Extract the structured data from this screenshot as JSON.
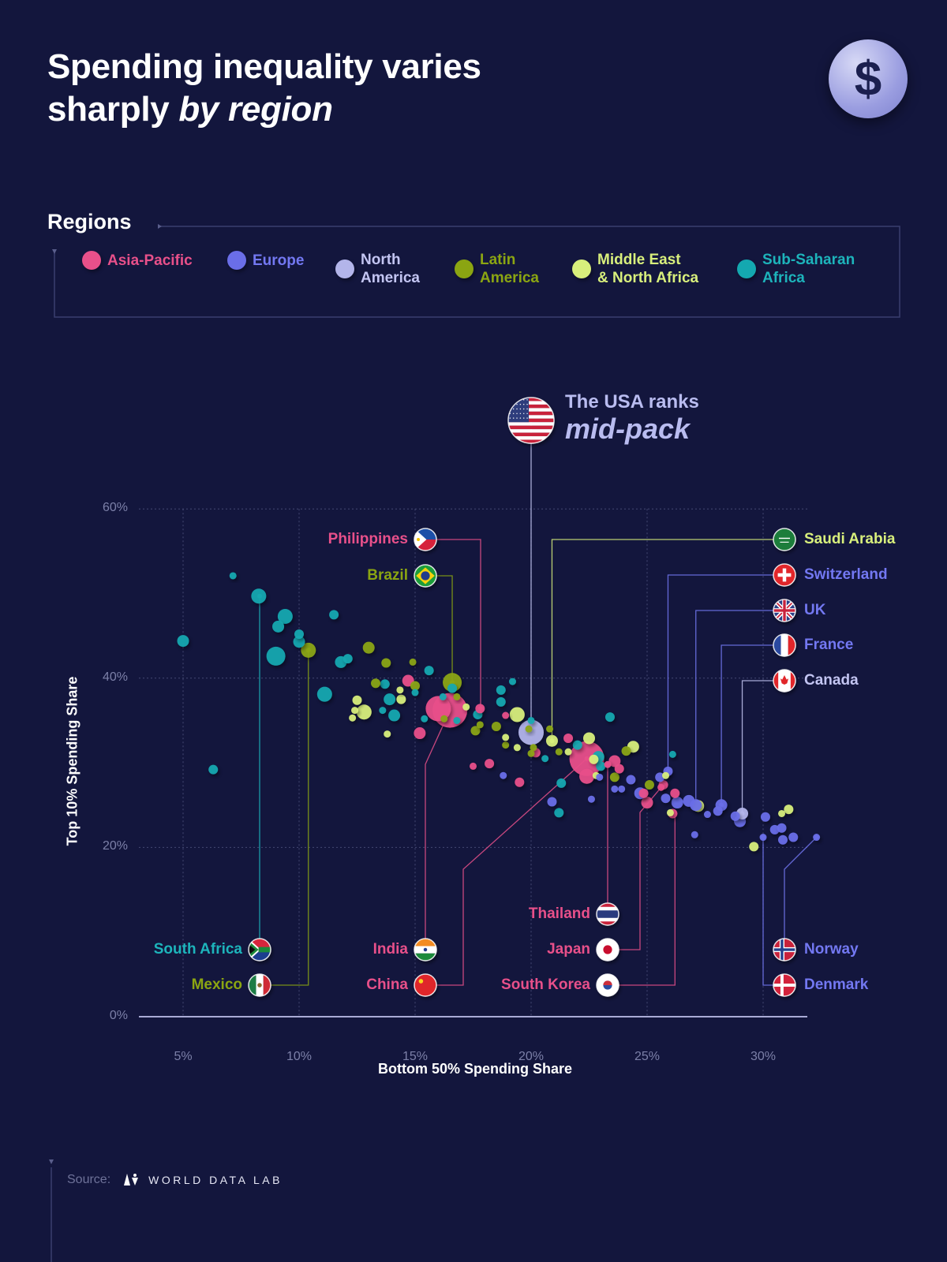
{
  "title": {
    "line1": "Spending inequality varies",
    "line2_plain": "sharply ",
    "line2_italic": "by region"
  },
  "header_icon": {
    "name": "dollar-icon",
    "glyph": "$"
  },
  "legend": {
    "heading": "Regions",
    "items": [
      {
        "key": "AP",
        "label": "Asia-Pacific",
        "color": "#e8508a"
      },
      {
        "key": "EU",
        "label": "Europe",
        "color": "#6a6ee8"
      },
      {
        "key": "NA",
        "label": "North\nAmerica",
        "color": "#b3b5ea"
      },
      {
        "key": "LA",
        "label": "Latin\nAmerica",
        "color": "#8ba512"
      },
      {
        "key": "ME",
        "label": "Middle East\n& North Africa",
        "color": "#d8ef7c"
      },
      {
        "key": "SS",
        "label": "Sub-Saharan\nAfrica",
        "color": "#14a8b0"
      }
    ]
  },
  "callout": {
    "line1": "The USA ranks",
    "line2": "mid-pack"
  },
  "chart_data": {
    "type": "scatter",
    "xlabel": "Bottom 50% Spending Share",
    "ylabel": "Top 10% Spending Share",
    "xlim": [
      3,
      32.5
    ],
    "ylim": [
      0,
      60
    ],
    "x_ticks": [
      "5%",
      "10%",
      "15%",
      "20%",
      "25%",
      "30%"
    ],
    "x_tick_values": [
      5,
      10,
      15,
      20,
      25,
      30
    ],
    "y_ticks": [
      "0%",
      "20%",
      "40%",
      "60%"
    ],
    "y_tick_values": [
      0,
      20,
      40,
      60
    ],
    "grid": true,
    "legend_placement": "top",
    "points": [
      {
        "x": 7.15,
        "y": 52.1,
        "region": "SS",
        "size": 1
      },
      {
        "x": 8.26,
        "y": 49.7,
        "region": "SS",
        "size": 4
      },
      {
        "x": 5.0,
        "y": 44.4,
        "region": "SS",
        "size": 3
      },
      {
        "x": 6.3,
        "y": 29.2,
        "region": "SS",
        "size": 2
      },
      {
        "x": 9.4,
        "y": 47.3,
        "region": "SS",
        "size": 4
      },
      {
        "x": 9.1,
        "y": 46.1,
        "region": "SS",
        "size": 3
      },
      {
        "x": 9.0,
        "y": 42.6,
        "region": "SS",
        "size": 5
      },
      {
        "x": 10.0,
        "y": 45.2,
        "region": "SS",
        "size": 2
      },
      {
        "x": 10.0,
        "y": 44.3,
        "region": "SS",
        "size": 3
      },
      {
        "x": 11.5,
        "y": 47.5,
        "region": "SS",
        "size": 2
      },
      {
        "x": 11.1,
        "y": 38.1,
        "region": "SS",
        "size": 4
      },
      {
        "x": 11.8,
        "y": 41.9,
        "region": "SS",
        "size": 3
      },
      {
        "x": 12.1,
        "y": 42.3,
        "region": "SS",
        "size": 2
      },
      {
        "x": 13.7,
        "y": 39.3,
        "region": "SS",
        "size": 2
      },
      {
        "x": 13.9,
        "y": 37.5,
        "region": "SS",
        "size": 3
      },
      {
        "x": 14.1,
        "y": 35.6,
        "region": "SS",
        "size": 3
      },
      {
        "x": 13.6,
        "y": 36.2,
        "region": "SS",
        "size": 1
      },
      {
        "x": 15.6,
        "y": 40.9,
        "region": "SS",
        "size": 2
      },
      {
        "x": 15.4,
        "y": 35.2,
        "region": "SS",
        "size": 1
      },
      {
        "x": 15.0,
        "y": 38.3,
        "region": "SS",
        "size": 1
      },
      {
        "x": 16.2,
        "y": 37.8,
        "region": "SS",
        "size": 1
      },
      {
        "x": 16.6,
        "y": 38.8,
        "region": "SS",
        "size": 2
      },
      {
        "x": 16.8,
        "y": 35.0,
        "region": "SS",
        "size": 1
      },
      {
        "x": 17.7,
        "y": 35.7,
        "region": "SS",
        "size": 2
      },
      {
        "x": 18.7,
        "y": 38.6,
        "region": "SS",
        "size": 2
      },
      {
        "x": 18.7,
        "y": 37.2,
        "region": "SS",
        "size": 2
      },
      {
        "x": 19.2,
        "y": 39.6,
        "region": "SS",
        "size": 1
      },
      {
        "x": 20.0,
        "y": 35.0,
        "region": "SS",
        "size": 1
      },
      {
        "x": 20.6,
        "y": 30.5,
        "region": "SS",
        "size": 1
      },
      {
        "x": 21.3,
        "y": 27.6,
        "region": "SS",
        "size": 2
      },
      {
        "x": 21.2,
        "y": 24.1,
        "region": "SS",
        "size": 2
      },
      {
        "x": 23.4,
        "y": 35.4,
        "region": "SS",
        "size": 2
      },
      {
        "x": 22.9,
        "y": 30.7,
        "region": "SS",
        "size": 3
      },
      {
        "x": 23.0,
        "y": 29.6,
        "region": "SS",
        "size": 2
      },
      {
        "x": 26.1,
        "y": 31.0,
        "region": "SS",
        "size": 1
      },
      {
        "x": 22.0,
        "y": 32.1,
        "region": "SS",
        "size": 2
      },
      {
        "x": 10.4,
        "y": 43.3,
        "region": "LA",
        "size": 4
      },
      {
        "x": 13.0,
        "y": 43.6,
        "region": "LA",
        "size": 3
      },
      {
        "x": 13.75,
        "y": 41.8,
        "region": "LA",
        "size": 2
      },
      {
        "x": 13.3,
        "y": 39.4,
        "region": "LA",
        "size": 2
      },
      {
        "x": 14.9,
        "y": 41.9,
        "region": "LA",
        "size": 1
      },
      {
        "x": 15.0,
        "y": 39.1,
        "region": "LA",
        "size": 2
      },
      {
        "x": 16.6,
        "y": 39.5,
        "region": "LA",
        "size": 5
      },
      {
        "x": 16.8,
        "y": 37.8,
        "region": "LA",
        "size": 1
      },
      {
        "x": 17.6,
        "y": 33.8,
        "region": "LA",
        "size": 2
      },
      {
        "x": 17.8,
        "y": 34.5,
        "region": "LA",
        "size": 1
      },
      {
        "x": 18.5,
        "y": 34.3,
        "region": "LA",
        "size": 2
      },
      {
        "x": 18.9,
        "y": 32.1,
        "region": "LA",
        "size": 1
      },
      {
        "x": 19.9,
        "y": 34.0,
        "region": "LA",
        "size": 1
      },
      {
        "x": 20.1,
        "y": 31.8,
        "region": "LA",
        "size": 1
      },
      {
        "x": 20.8,
        "y": 34.0,
        "region": "LA",
        "size": 1
      },
      {
        "x": 16.25,
        "y": 35.2,
        "region": "LA",
        "size": 1
      },
      {
        "x": 23.6,
        "y": 28.3,
        "region": "LA",
        "size": 2
      },
      {
        "x": 24.1,
        "y": 31.4,
        "region": "LA",
        "size": 2
      },
      {
        "x": 25.1,
        "y": 27.4,
        "region": "LA",
        "size": 2
      },
      {
        "x": 20.0,
        "y": 31.1,
        "region": "LA",
        "size": 1
      },
      {
        "x": 21.2,
        "y": 31.3,
        "region": "LA",
        "size": 1
      },
      {
        "x": 12.5,
        "y": 37.4,
        "region": "ME",
        "size": 2
      },
      {
        "x": 12.4,
        "y": 36.2,
        "region": "ME",
        "size": 1
      },
      {
        "x": 12.8,
        "y": 36.0,
        "region": "ME",
        "size": 4
      },
      {
        "x": 12.3,
        "y": 35.3,
        "region": "ME",
        "size": 1
      },
      {
        "x": 13.8,
        "y": 33.4,
        "region": "ME",
        "size": 1
      },
      {
        "x": 14.4,
        "y": 37.5,
        "region": "ME",
        "size": 2
      },
      {
        "x": 14.35,
        "y": 38.6,
        "region": "ME",
        "size": 1
      },
      {
        "x": 17.2,
        "y": 36.6,
        "region": "ME",
        "size": 1
      },
      {
        "x": 19.4,
        "y": 35.7,
        "region": "ME",
        "size": 4
      },
      {
        "x": 18.9,
        "y": 33.0,
        "region": "ME",
        "size": 1
      },
      {
        "x": 19.4,
        "y": 31.8,
        "region": "ME",
        "size": 1
      },
      {
        "x": 20.9,
        "y": 32.6,
        "region": "ME",
        "size": 3
      },
      {
        "x": 22.5,
        "y": 32.9,
        "region": "ME",
        "size": 3
      },
      {
        "x": 21.6,
        "y": 31.3,
        "region": "ME",
        "size": 1
      },
      {
        "x": 22.7,
        "y": 30.4,
        "region": "ME",
        "size": 2
      },
      {
        "x": 22.8,
        "y": 28.5,
        "region": "ME",
        "size": 1
      },
      {
        "x": 24.4,
        "y": 31.9,
        "region": "ME",
        "size": 3
      },
      {
        "x": 25.8,
        "y": 28.5,
        "region": "ME",
        "size": 1
      },
      {
        "x": 27.2,
        "y": 24.9,
        "region": "ME",
        "size": 3
      },
      {
        "x": 26.0,
        "y": 24.1,
        "region": "ME",
        "size": 1
      },
      {
        "x": 29.6,
        "y": 20.1,
        "region": "ME",
        "size": 2
      },
      {
        "x": 31.1,
        "y": 24.5,
        "region": "ME",
        "size": 2
      },
      {
        "x": 30.8,
        "y": 24.0,
        "region": "ME",
        "size": 1
      },
      {
        "x": 14.7,
        "y": 39.7,
        "region": "AP",
        "size": 3
      },
      {
        "x": 15.2,
        "y": 33.5,
        "region": "AP",
        "size": 3
      },
      {
        "x": 16.5,
        "y": 36.2,
        "region": "AP",
        "size": 7
      },
      {
        "x": 16.0,
        "y": 36.4,
        "region": "AP",
        "size": 6
      },
      {
        "x": 17.5,
        "y": 29.6,
        "region": "AP",
        "size": 1
      },
      {
        "x": 18.2,
        "y": 29.9,
        "region": "AP",
        "size": 2
      },
      {
        "x": 18.9,
        "y": 35.6,
        "region": "AP",
        "size": 1
      },
      {
        "x": 19.5,
        "y": 27.7,
        "region": "AP",
        "size": 2
      },
      {
        "x": 20.2,
        "y": 31.2,
        "region": "AP",
        "size": 2
      },
      {
        "x": 21.6,
        "y": 32.9,
        "region": "AP",
        "size": 2
      },
      {
        "x": 22.4,
        "y": 30.5,
        "region": "AP",
        "size": 7
      },
      {
        "x": 22.4,
        "y": 28.4,
        "region": "AP",
        "size": 4
      },
      {
        "x": 23.6,
        "y": 30.2,
        "region": "AP",
        "size": 3
      },
      {
        "x": 23.8,
        "y": 29.3,
        "region": "AP",
        "size": 2
      },
      {
        "x": 24.85,
        "y": 26.4,
        "region": "AP",
        "size": 2
      },
      {
        "x": 25.0,
        "y": 25.3,
        "region": "AP",
        "size": 3
      },
      {
        "x": 26.1,
        "y": 24.0,
        "region": "AP",
        "size": 2
      },
      {
        "x": 26.2,
        "y": 26.4,
        "region": "AP",
        "size": 2
      },
      {
        "x": 25.6,
        "y": 27.1,
        "region": "AP",
        "size": 1
      },
      {
        "x": 17.8,
        "y": 36.4,
        "region": "AP",
        "size": 2
      },
      {
        "x": 23.3,
        "y": 29.8,
        "region": "AP",
        "size": 1
      },
      {
        "x": 25.7,
        "y": 27.4,
        "region": "AP",
        "size": 2
      },
      {
        "x": 18.8,
        "y": 28.5,
        "region": "EU",
        "size": 1
      },
      {
        "x": 20.9,
        "y": 25.4,
        "region": "EU",
        "size": 2
      },
      {
        "x": 22.6,
        "y": 25.7,
        "region": "EU",
        "size": 1
      },
      {
        "x": 22.95,
        "y": 28.3,
        "region": "EU",
        "size": 1
      },
      {
        "x": 23.6,
        "y": 26.9,
        "region": "EU",
        "size": 1
      },
      {
        "x": 23.9,
        "y": 26.9,
        "region": "EU",
        "size": 1
      },
      {
        "x": 24.3,
        "y": 28.0,
        "region": "EU",
        "size": 2
      },
      {
        "x": 24.7,
        "y": 26.4,
        "region": "EU",
        "size": 3
      },
      {
        "x": 25.55,
        "y": 28.3,
        "region": "EU",
        "size": 2
      },
      {
        "x": 25.9,
        "y": 29.0,
        "region": "EU",
        "size": 2
      },
      {
        "x": 25.8,
        "y": 25.8,
        "region": "EU",
        "size": 2
      },
      {
        "x": 26.3,
        "y": 25.3,
        "region": "EU",
        "size": 3
      },
      {
        "x": 26.8,
        "y": 25.5,
        "region": "EU",
        "size": 3
      },
      {
        "x": 27.1,
        "y": 25.0,
        "region": "EU",
        "size": 3
      },
      {
        "x": 27.05,
        "y": 21.5,
        "region": "EU",
        "size": 1
      },
      {
        "x": 27.6,
        "y": 23.9,
        "region": "EU",
        "size": 1
      },
      {
        "x": 28.05,
        "y": 24.3,
        "region": "EU",
        "size": 2
      },
      {
        "x": 28.2,
        "y": 25.0,
        "region": "EU",
        "size": 3
      },
      {
        "x": 28.8,
        "y": 23.7,
        "region": "EU",
        "size": 2
      },
      {
        "x": 29.0,
        "y": 23.1,
        "region": "EU",
        "size": 3
      },
      {
        "x": 30.1,
        "y": 23.6,
        "region": "EU",
        "size": 2
      },
      {
        "x": 30.5,
        "y": 22.1,
        "region": "EU",
        "size": 2
      },
      {
        "x": 30.8,
        "y": 22.3,
        "region": "EU",
        "size": 2
      },
      {
        "x": 30.85,
        "y": 20.9,
        "region": "EU",
        "size": 2
      },
      {
        "x": 31.3,
        "y": 21.2,
        "region": "EU",
        "size": 2
      },
      {
        "x": 32.3,
        "y": 21.2,
        "region": "EU",
        "size": 1
      },
      {
        "x": 30.0,
        "y": 21.2,
        "region": "EU",
        "size": 1
      },
      {
        "x": 20.0,
        "y": 33.6,
        "region": "NA",
        "size": 6
      },
      {
        "x": 29.1,
        "y": 24.0,
        "region": "NA",
        "size": 3
      }
    ],
    "annotations": [
      {
        "name": "Philippines",
        "region": "AP",
        "flag": "philippines",
        "x": 17.8,
        "y": 36.4
      },
      {
        "name": "Brazil",
        "region": "LA",
        "flag": "brazil",
        "x": 16.6,
        "y": 39.5
      },
      {
        "name": "South Africa",
        "region": "SS",
        "flag": "south-africa",
        "x": 8.26,
        "y": 49.7
      },
      {
        "name": "Mexico",
        "region": "LA",
        "flag": "mexico",
        "x": 10.4,
        "y": 43.3
      },
      {
        "name": "India",
        "region": "AP",
        "flag": "india",
        "x": 16.5,
        "y": 36.2
      },
      {
        "name": "China",
        "region": "AP",
        "flag": "china",
        "x": 22.4,
        "y": 30.5
      },
      {
        "name": "Thailand",
        "region": "AP",
        "flag": "thailand",
        "x": 23.3,
        "y": 29.8
      },
      {
        "name": "Japan",
        "region": "AP",
        "flag": "japan",
        "x": 25.7,
        "y": 27.4
      },
      {
        "name": "South Korea",
        "region": "AP",
        "flag": "south-korea",
        "x": 26.2,
        "y": 24.0
      },
      {
        "name": "",
        "region": "NA",
        "flag": "usa",
        "x": 20.0,
        "y": 33.6
      },
      {
        "name": "Saudi Arabia",
        "region": "ME",
        "flag": "saudi-arabia",
        "x": 20.9,
        "y": 32.6
      },
      {
        "name": "Switzerland",
        "region": "EU",
        "flag": "switzerland",
        "x": 25.9,
        "y": 29.0
      },
      {
        "name": "UK",
        "region": "EU",
        "flag": "uk",
        "x": 27.1,
        "y": 25.0
      },
      {
        "name": "France",
        "region": "EU",
        "flag": "france",
        "x": 28.2,
        "y": 25.0
      },
      {
        "name": "Canada",
        "region": "NA",
        "flag": "canada",
        "x": 29.1,
        "y": 24.0
      },
      {
        "name": "Norway",
        "region": "EU",
        "flag": "norway",
        "x": 32.3,
        "y": 21.2
      },
      {
        "name": "Denmark",
        "region": "EU",
        "flag": "denmark",
        "x": 30.0,
        "y": 21.2
      }
    ]
  },
  "footer": {
    "source_label": "Source:",
    "brand": "WORLD DATA LAB",
    "brand_icon": "world-data-lab-logo"
  }
}
